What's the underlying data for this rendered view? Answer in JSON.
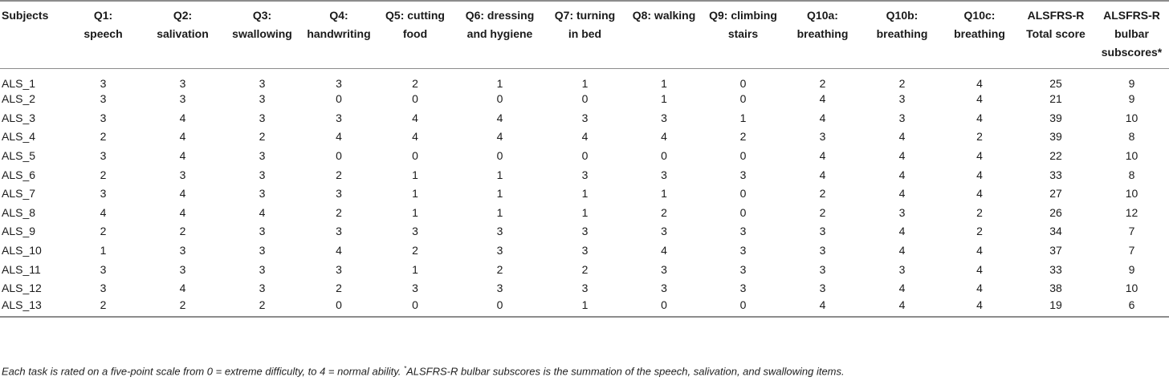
{
  "columns": [
    [
      "Subjects",
      ""
    ],
    [
      "Q1:",
      "speech"
    ],
    [
      "Q2:",
      "salivation"
    ],
    [
      "Q3:",
      "swallowing"
    ],
    [
      "Q4:",
      "handwriting"
    ],
    [
      "Q5: cutting",
      "food"
    ],
    [
      "Q6: dressing",
      "and hygiene"
    ],
    [
      "Q7: turning",
      "in bed"
    ],
    [
      "Q8: walking",
      ""
    ],
    [
      "Q9: climbing",
      "stairs"
    ],
    [
      "Q10a:",
      "breathing"
    ],
    [
      "Q10b:",
      "breathing"
    ],
    [
      "Q10c:",
      "breathing"
    ],
    [
      "ALSFRS-R",
      "Total score"
    ],
    [
      "ALSFRS-R",
      "bulbar",
      "subscores*"
    ]
  ],
  "rows": [
    [
      "ALS_1",
      "3",
      "3",
      "3",
      "3",
      "2",
      "1",
      "1",
      "1",
      "0",
      "2",
      "2",
      "4",
      "25",
      "9"
    ],
    [
      "ALS_2",
      "3",
      "3",
      "3",
      "0",
      "0",
      "0",
      "0",
      "1",
      "0",
      "4",
      "3",
      "4",
      "21",
      "9"
    ],
    [
      "ALS_3",
      "3",
      "4",
      "3",
      "3",
      "4",
      "4",
      "3",
      "3",
      "1",
      "4",
      "3",
      "4",
      "39",
      "10"
    ],
    [
      "ALS_4",
      "2",
      "4",
      "2",
      "4",
      "4",
      "4",
      "4",
      "4",
      "2",
      "3",
      "4",
      "2",
      "39",
      "8"
    ],
    [
      "ALS_5",
      "3",
      "4",
      "3",
      "0",
      "0",
      "0",
      "0",
      "0",
      "0",
      "4",
      "4",
      "4",
      "22",
      "10"
    ],
    [
      "ALS_6",
      "2",
      "3",
      "3",
      "2",
      "1",
      "1",
      "3",
      "3",
      "3",
      "4",
      "4",
      "4",
      "33",
      "8"
    ],
    [
      "ALS_7",
      "3",
      "4",
      "3",
      "3",
      "1",
      "1",
      "1",
      "1",
      "0",
      "2",
      "4",
      "4",
      "27",
      "10"
    ],
    [
      "ALS_8",
      "4",
      "4",
      "4",
      "2",
      "1",
      "1",
      "1",
      "2",
      "0",
      "2",
      "3",
      "2",
      "26",
      "12"
    ],
    [
      "ALS_9",
      "2",
      "2",
      "3",
      "3",
      "3",
      "3",
      "3",
      "3",
      "3",
      "3",
      "4",
      "2",
      "34",
      "7"
    ],
    [
      "ALS_10",
      "1",
      "3",
      "3",
      "4",
      "2",
      "3",
      "3",
      "4",
      "3",
      "3",
      "4",
      "4",
      "37",
      "7"
    ],
    [
      "ALS_11",
      "3",
      "3",
      "3",
      "3",
      "1",
      "2",
      "2",
      "3",
      "3",
      "3",
      "3",
      "4",
      "33",
      "9"
    ],
    [
      "ALS_12",
      "3",
      "4",
      "3",
      "2",
      "3",
      "3",
      "3",
      "3",
      "3",
      "3",
      "4",
      "4",
      "38",
      "10"
    ],
    [
      "ALS_13",
      "2",
      "2",
      "2",
      "0",
      "0",
      "0",
      "1",
      "0",
      "0",
      "4",
      "4",
      "4",
      "19",
      "6"
    ]
  ],
  "footnote": {
    "part1": "Each task is rated on a five-point scale from 0 = extreme difficulty, to 4 = normal ability. ",
    "marker": "*",
    "part2": "ALSFRS-R bulbar subscores is the summation of the speech, salivation, and swallowing items."
  }
}
